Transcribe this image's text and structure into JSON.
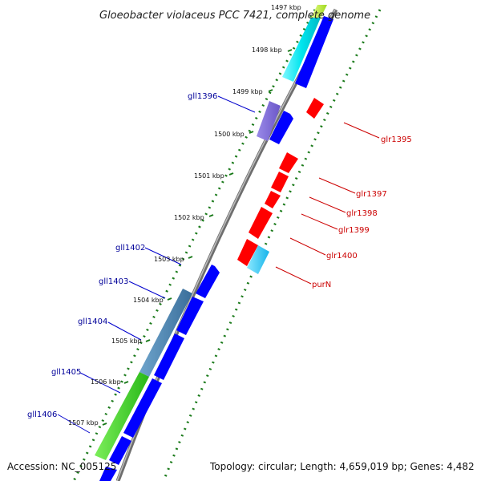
{
  "title": "Gloeobacter violaceus PCC 7421, complete genome",
  "footer": {
    "accession": "Accession: NC_005125",
    "summary": "Topology: circular; Length: 4,659,019 bp; Genes: 4,482"
  },
  "scale_labels": [
    "1497 kbp",
    "1498 kbp",
    "1499 kbp",
    "1500 kbp",
    "1501 kbp",
    "1502 kbp",
    "1503 kbp",
    "1504 kbp",
    "1505 kbp",
    "1506 kbp",
    "1507 kbp"
  ],
  "colors": {
    "forward_gene": "#ff0000",
    "reverse_gene": "#0000ff",
    "forward_label": "#cc0000",
    "reverse_label": "#000099",
    "gc_dots": "#1a7a1a",
    "backbone": "#888888"
  },
  "reverse_labels": [
    "gll1396",
    "gll1402",
    "gll1403",
    "gll1404",
    "gll1405",
    "gll1406"
  ],
  "forward_labels": [
    "glr1395",
    "glr1397",
    "glr1398",
    "glr1399",
    "glr1400",
    "purN"
  ]
}
